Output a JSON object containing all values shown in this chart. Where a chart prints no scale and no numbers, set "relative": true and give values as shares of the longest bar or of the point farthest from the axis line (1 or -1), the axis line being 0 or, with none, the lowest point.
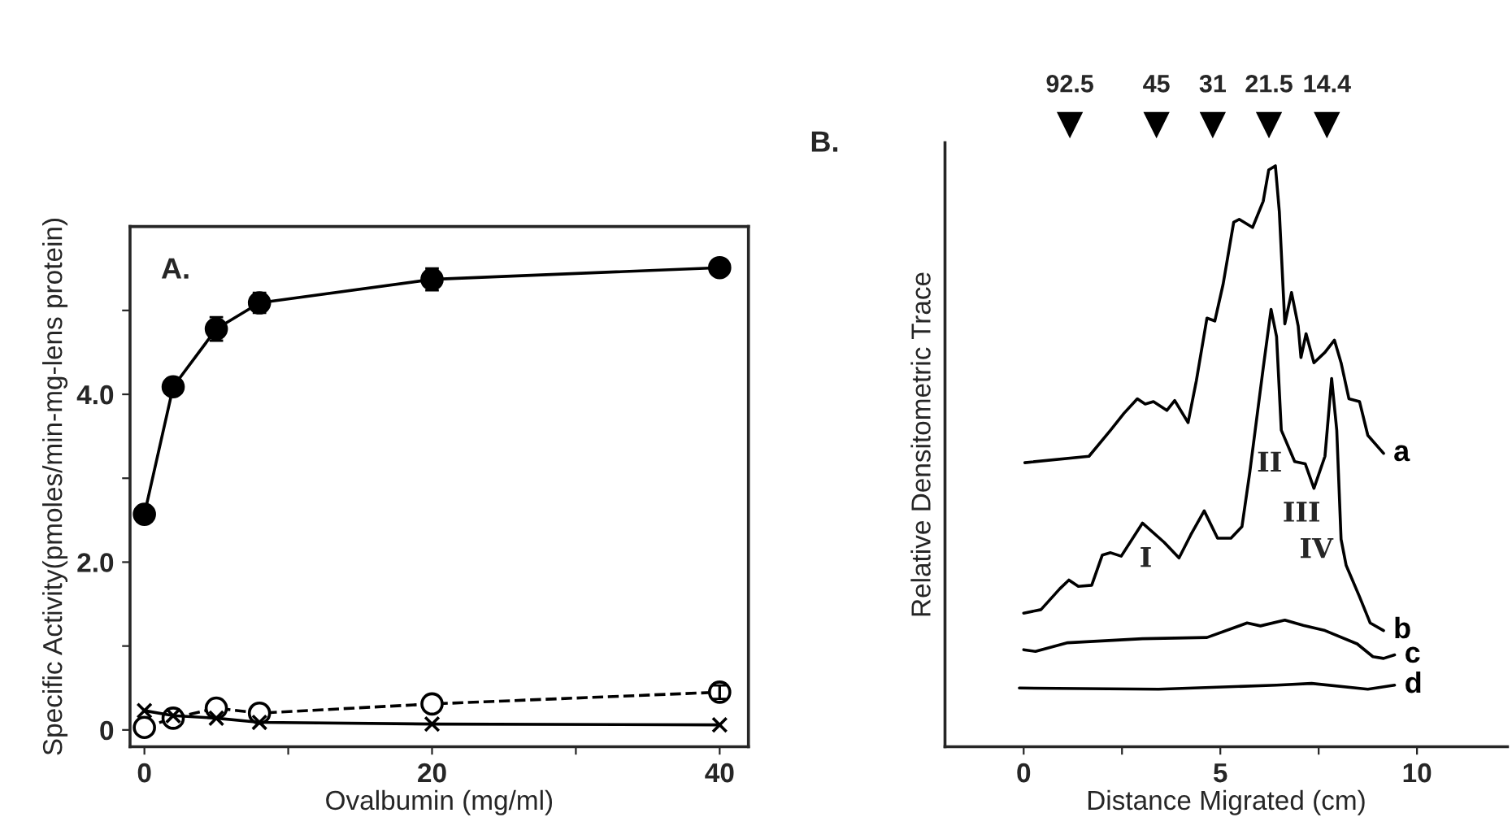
{
  "chart_data": [
    {
      "type": "line",
      "title": "A.",
      "xlabel": "Ovalbumin (mg/ml)",
      "ylabel": "Specific Activity(pmoles/min-mg-lens protein)",
      "x": [
        0,
        2,
        5,
        8,
        20,
        40
      ],
      "xlim": [
        -1,
        42
      ],
      "ylim": [
        -0.2,
        6.0
      ],
      "xticks": [
        0,
        {
          "value": 10,
          "label": null
        },
        20,
        {
          "value": 30,
          "label": null
        },
        40
      ],
      "yticks": [
        0,
        {
          "value": 1,
          "label": null
        },
        {
          "value": 2,
          "label": "2.0"
        },
        {
          "value": 3,
          "label": null
        },
        {
          "value": 4,
          "label": "4.0"
        },
        {
          "value": 5,
          "label": null
        }
      ],
      "grid": false,
      "legend": false,
      "series": [
        {
          "color": "#000000",
          "marker": "circle",
          "line_style": "solid",
          "values": [
            2.57,
            4.09,
            4.78,
            5.09,
            5.37,
            5.51
          ],
          "errors": [
            null,
            0.05,
            0.14,
            0.12,
            0.13,
            null
          ]
        },
        {
          "color": "#000000",
          "marker": "circle",
          "line_style": "dashed",
          "values": [
            0.03,
            0.14,
            0.26,
            0.2,
            0.31,
            0.45
          ],
          "errors": [
            null,
            null,
            null,
            null,
            null,
            0.08
          ]
        },
        {
          "color": "#000000",
          "marker": "cross",
          "line_style": "solid",
          "values": [
            0.23,
            0.17,
            0.14,
            0.09,
            0.07,
            0.06
          ]
        }
      ]
    },
    {
      "type": "line",
      "title": "B.",
      "xlabel": "Distance Migrated (cm)",
      "ylabel": "Relative Densitometric Trace",
      "relative": true,
      "xlim": [
        -2,
        12.3
      ],
      "xticks": [
        0,
        {
          "value": 2.5,
          "label": null
        },
        5,
        {
          "value": 7.5,
          "label": null
        },
        10
      ],
      "grid": false,
      "legend": false,
      "marker": "none",
      "line_style": "solid",
      "annotations": [
        "92.5",
        "45",
        "31",
        "21.5",
        "14.4",
        "I",
        "II",
        "III",
        "IV"
      ],
      "series": [
        {
          "name": "a",
          "color": "#000000",
          "x": [
            0.03,
            1.66,
            2.21,
            2.55,
            2.89,
            3.09,
            3.3,
            3.64,
            3.84,
            4.18,
            4.39,
            4.66,
            4.86,
            5.07,
            5.34,
            5.48,
            5.82,
            6.09,
            6.23,
            6.4,
            6.5,
            6.64,
            6.81,
            6.98,
            7.05,
            7.18,
            7.38,
            7.66,
            7.9,
            8.07,
            8.27,
            8.54,
            8.75,
            9.15
          ],
          "values": [
            0.489,
            0.5,
            0.545,
            0.574,
            0.599,
            0.59,
            0.594,
            0.579,
            0.596,
            0.558,
            0.63,
            0.738,
            0.733,
            0.796,
            0.903,
            0.908,
            0.894,
            0.939,
            0.993,
            1.0,
            0.921,
            0.728,
            0.782,
            0.724,
            0.67,
            0.711,
            0.661,
            0.679,
            0.7,
            0.661,
            0.599,
            0.594,
            0.536,
            0.505
          ]
        },
        {
          "name": "b",
          "color": "#000000",
          "x": [
            0.0,
            0.44,
            0.92,
            1.15,
            1.39,
            1.73,
            2.0,
            2.21,
            2.48,
            3.02,
            3.57,
            3.95,
            4.25,
            4.59,
            4.93,
            5.27,
            5.55,
            5.75,
            6.09,
            6.29,
            6.43,
            6.55,
            6.89,
            7.16,
            7.38,
            7.66,
            7.83,
            7.96,
            8.07,
            8.2,
            8.54,
            8.81,
            9.15
          ],
          "values": [
            0.23,
            0.236,
            0.272,
            0.287,
            0.276,
            0.278,
            0.33,
            0.334,
            0.328,
            0.385,
            0.352,
            0.325,
            0.365,
            0.406,
            0.359,
            0.359,
            0.379,
            0.473,
            0.652,
            0.753,
            0.706,
            0.545,
            0.491,
            0.487,
            0.445,
            0.5,
            0.634,
            0.545,
            0.357,
            0.312,
            0.258,
            0.213,
            0.2
          ]
        },
        {
          "name": "c",
          "color": "#000000",
          "x": [
            0.0,
            0.3,
            1.12,
            3.02,
            4.66,
            5.68,
            6.02,
            6.64,
            7.11,
            7.66,
            8.48,
            8.88,
            9.15,
            9.43
          ],
          "values": [
            0.167,
            0.164,
            0.179,
            0.186,
            0.188,
            0.213,
            0.208,
            0.218,
            0.209,
            0.2,
            0.177,
            0.155,
            0.152,
            0.158
          ]
        },
        {
          "name": "d",
          "color": "#000000",
          "x": [
            -0.11,
            3.43,
            6.43,
            7.32,
            8.75,
            9.43
          ],
          "values": [
            0.101,
            0.099,
            0.106,
            0.109,
            0.099,
            0.106
          ]
        }
      ]
    }
  ]
}
